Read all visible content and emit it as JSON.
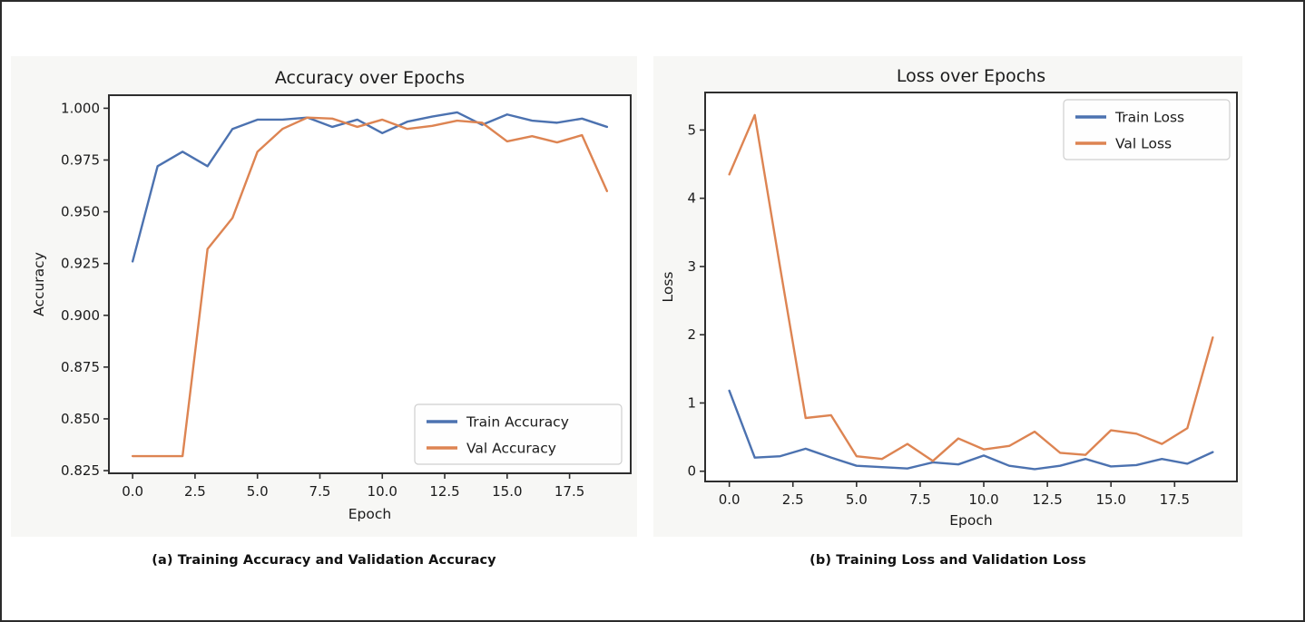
{
  "figure": {
    "background": "#ffffff",
    "border_color": "#2b2b2b",
    "panel_background": "#f7f7f5",
    "spine_color": "#2e2e2e",
    "text_color": "#1b1b1b",
    "legend_border_color": "#cfcfcf",
    "legend_background": "#fefefe"
  },
  "captions": {
    "a": "(a) Training Accuracy and Validation Accuracy",
    "b": "(b) Training Loss and Validation Loss"
  },
  "chart_data": [
    {
      "id": "accuracy",
      "type": "line",
      "title": "Accuracy over Epochs",
      "xlabel": "Epoch",
      "ylabel": "Accuracy",
      "grid": false,
      "legend_position": "lower-right",
      "x": [
        0,
        1,
        2,
        3,
        4,
        5,
        6,
        7,
        8,
        9,
        10,
        11,
        12,
        13,
        14,
        15,
        16,
        17,
        18,
        19
      ],
      "series": [
        {
          "name": "Train Accuracy",
          "color": "#4C72B0",
          "values": [
            0.926,
            0.972,
            0.979,
            0.972,
            0.99,
            0.9945,
            0.9945,
            0.9955,
            0.991,
            0.9945,
            0.988,
            0.9935,
            0.996,
            0.998,
            0.992,
            0.997,
            0.994,
            0.993,
            0.995,
            0.991
          ]
        },
        {
          "name": "Val Accuracy",
          "color": "#DD8452",
          "values": [
            0.832,
            0.832,
            0.832,
            0.932,
            0.947,
            0.979,
            0.99,
            0.9955,
            0.995,
            0.991,
            0.9945,
            0.99,
            0.9915,
            0.994,
            0.993,
            0.984,
            0.9865,
            0.9835,
            0.987,
            0.96
          ]
        }
      ],
      "xlim": [
        -0.95,
        19.95
      ],
      "ylim": [
        0.8237,
        1.0063
      ],
      "xticks": [
        0,
        2.5,
        5,
        7.5,
        10,
        12.5,
        15,
        17.5
      ],
      "xtick_labels": [
        "0.0",
        "2.5",
        "5.0",
        "7.5",
        "10.0",
        "12.5",
        "15.0",
        "17.5"
      ],
      "yticks": [
        0.825,
        0.85,
        0.875,
        0.9,
        0.925,
        0.95,
        0.975,
        1.0
      ],
      "ytick_labels": [
        "0.825",
        "0.850",
        "0.875",
        "0.900",
        "0.925",
        "0.950",
        "0.975",
        "1.000"
      ]
    },
    {
      "id": "loss",
      "type": "line",
      "title": "Loss over Epochs",
      "xlabel": "Epoch",
      "ylabel": "Loss",
      "grid": false,
      "legend_position": "upper-right",
      "x": [
        0,
        1,
        2,
        3,
        4,
        5,
        6,
        7,
        8,
        9,
        10,
        11,
        12,
        13,
        14,
        15,
        16,
        17,
        18,
        19
      ],
      "series": [
        {
          "name": "Train Loss",
          "color": "#4C72B0",
          "values": [
            1.18,
            0.2,
            0.22,
            0.33,
            0.2,
            0.08,
            0.06,
            0.04,
            0.13,
            0.1,
            0.23,
            0.08,
            0.03,
            0.08,
            0.18,
            0.07,
            0.09,
            0.18,
            0.11,
            0.28
          ]
        },
        {
          "name": "Val Loss",
          "color": "#DD8452",
          "values": [
            4.35,
            5.22,
            2.98,
            0.78,
            0.82,
            0.22,
            0.18,
            0.4,
            0.15,
            0.48,
            0.32,
            0.37,
            0.58,
            0.27,
            0.24,
            0.6,
            0.55,
            0.4,
            0.63,
            1.96
          ]
        }
      ],
      "xlim": [
        -0.95,
        19.95
      ],
      "ylim": [
        -0.15,
        5.55
      ],
      "xticks": [
        0,
        2.5,
        5,
        7.5,
        10,
        12.5,
        15,
        17.5
      ],
      "xtick_labels": [
        "0.0",
        "2.5",
        "5.0",
        "7.5",
        "10.0",
        "12.5",
        "15.0",
        "17.5"
      ],
      "yticks": [
        0,
        1,
        2,
        3,
        4,
        5
      ],
      "ytick_labels": [
        "0",
        "1",
        "2",
        "3",
        "4",
        "5"
      ]
    }
  ]
}
